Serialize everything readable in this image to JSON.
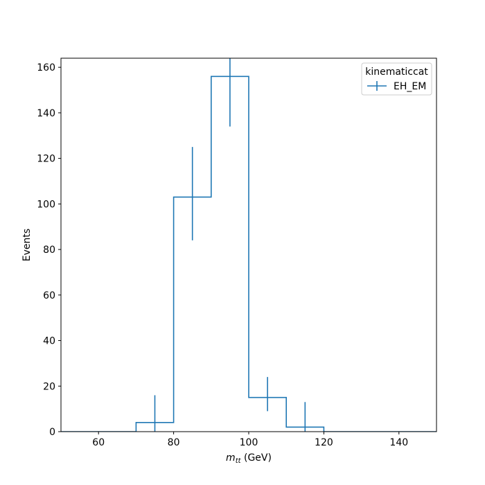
{
  "chart_data": {
    "type": "step",
    "xlabel": "m_tt (GeV)",
    "xlabel_main": "m",
    "xlabel_sub": "tt",
    "xlabel_unit": " (GeV)",
    "ylabel": "Events",
    "xlim": [
      50,
      150
    ],
    "ylim": [
      0,
      164
    ],
    "xticks": [
      60,
      80,
      100,
      120,
      140
    ],
    "yticks": [
      0,
      20,
      40,
      60,
      80,
      100,
      120,
      140,
      160
    ],
    "grid": false,
    "legend": {
      "title": "kinematiccat",
      "placement": "top-right"
    },
    "series": [
      {
        "name": "EH_EM",
        "color": "#1f77b4",
        "bin_edges": [
          50,
          60,
          70,
          80,
          90,
          100,
          110,
          120,
          130,
          140,
          150
        ],
        "values": [
          0,
          0,
          4,
          103,
          156,
          15,
          2,
          0,
          0,
          0
        ],
        "errors": [
          [
            0,
            0
          ],
          [
            0,
            0
          ],
          [
            4,
            12
          ],
          [
            19,
            22
          ],
          [
            22,
            8
          ],
          [
            6,
            9
          ],
          [
            2,
            11
          ],
          [
            0,
            0
          ],
          [
            0,
            0
          ],
          [
            0,
            0
          ]
        ]
      }
    ]
  }
}
